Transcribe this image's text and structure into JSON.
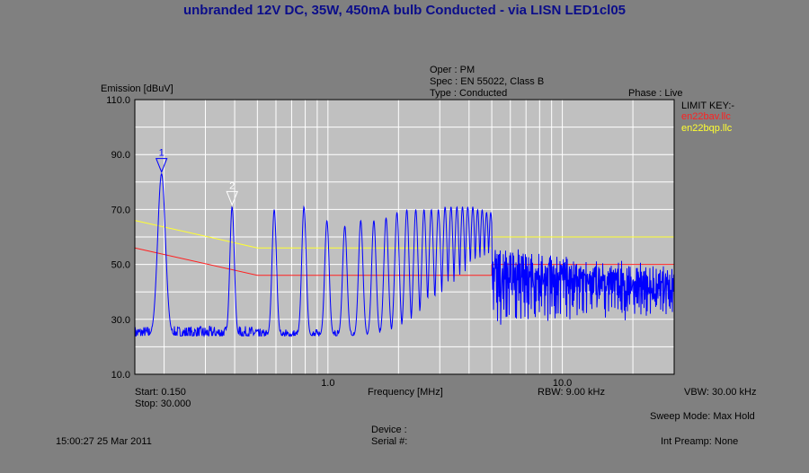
{
  "header": {
    "title": "unbranded 12V DC, 35W, 450mA bulb Conducted - via LISN      LED1cl05",
    "oper": "Oper : PM",
    "spec": "Spec : EN 55022, Class B",
    "type": "Type : Conducted",
    "phase": "Phase : Live"
  },
  "limit_key": {
    "title": "LIMIT KEY:-",
    "items": [
      {
        "label": "en22bav.llc",
        "color": "#ff2020"
      },
      {
        "label": "en22bqp.llc",
        "color": "#ffff30"
      }
    ]
  },
  "footer": {
    "start": "Start: 0.150",
    "stop": "Stop: 30.000",
    "frequency_label": "Frequency [MHz]",
    "rbw": "RBW: 9.00 kHz",
    "vbw": "VBW: 30.00 kHz",
    "sweep_mode": "Sweep Mode: Max Hold",
    "device": "Device :",
    "serial": "Serial #:",
    "timestamp": "15:00:27 25 Mar 2011",
    "preamp": "Int Preamp: None"
  },
  "chart_data": {
    "type": "line",
    "xscale": "log",
    "xlim": [
      0.15,
      30.0
    ],
    "ylim": [
      10,
      110
    ],
    "xlabel": "Frequency [MHz]",
    "ylabel": "Emission [dBuV]",
    "yticks": [
      "110.0",
      "90.0",
      "70.0",
      "50.0",
      "30.0",
      "10.0"
    ],
    "xticks": [
      {
        "value": 1.0,
        "label": "1.0"
      },
      {
        "value": 10.0,
        "label": "10.0"
      }
    ],
    "grid": true,
    "plot_background": "#c0c0c0",
    "trace_color": "#0000ff",
    "series": [
      {
        "name": "en22bav.llc",
        "color": "#ff2020",
        "points": [
          [
            0.15,
            56
          ],
          [
            0.5,
            46
          ],
          [
            5.0,
            46
          ],
          [
            5.0,
            50
          ],
          [
            30.0,
            50
          ]
        ]
      },
      {
        "name": "en22bqp.llc",
        "color": "#ffff30",
        "points": [
          [
            0.15,
            66
          ],
          [
            0.5,
            56
          ],
          [
            5.0,
            56
          ],
          [
            5.0,
            60
          ],
          [
            30.0,
            60
          ]
        ]
      }
    ],
    "trace": {
      "noise_floor_db": 24,
      "peaks": [
        [
          0.195,
          83
        ],
        [
          0.39,
          71
        ],
        [
          0.59,
          70
        ],
        [
          0.79,
          71
        ],
        [
          0.99,
          66
        ],
        [
          1.18,
          64
        ],
        [
          1.38,
          66
        ],
        [
          1.57,
          66
        ],
        [
          1.77,
          67
        ],
        [
          1.97,
          69
        ],
        [
          2.17,
          70
        ],
        [
          2.37,
          70
        ],
        [
          2.57,
          70
        ],
        [
          2.76,
          70
        ],
        [
          2.96,
          70
        ],
        [
          3.16,
          71
        ],
        [
          3.35,
          71
        ],
        [
          3.55,
          71
        ],
        [
          3.75,
          71
        ],
        [
          3.95,
          71
        ],
        [
          4.15,
          71
        ],
        [
          4.35,
          70
        ],
        [
          4.55,
          70
        ],
        [
          4.75,
          69
        ],
        [
          4.95,
          69
        ]
      ]
    },
    "markers": [
      {
        "label": "1",
        "x": 0.195,
        "y": 83
      },
      {
        "label": "2",
        "x": 0.39,
        "y": 71
      }
    ]
  }
}
